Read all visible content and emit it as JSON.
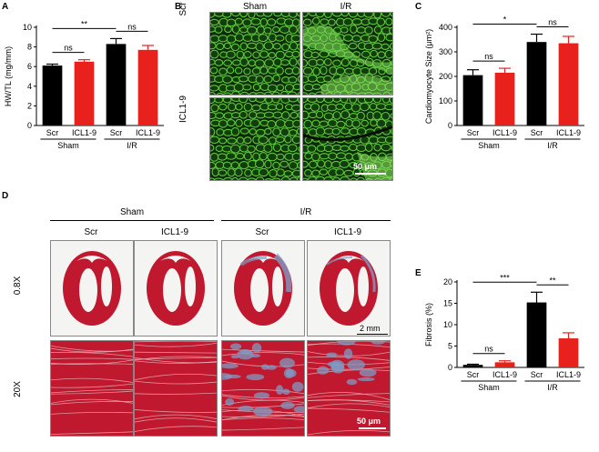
{
  "colors": {
    "scr": "#000000",
    "icl": "#e8211c",
    "myocyte_bg": "#0b2a06",
    "myocyte_edge": "#5fc83a",
    "masson_red": "#c0182e",
    "masson_blue": "#7f9bc4"
  },
  "panels": {
    "A": {
      "letter": "A"
    },
    "B": {
      "letter": "B",
      "col_sham": "Sham",
      "col_ir": "I/R",
      "row_scr": "Scr",
      "row_icl": "ICL1-9",
      "scale": "50 μm"
    },
    "C": {
      "letter": "C"
    },
    "D": {
      "letter": "D",
      "group_sham": "Sham",
      "group_ir": "I/R",
      "col_labels": [
        "Scr",
        "ICL1-9",
        "Scr",
        "ICL1-9"
      ],
      "row_low": "0.8X",
      "row_high": "20X",
      "scale_low": "2 mm",
      "scale_high": "50 μm"
    },
    "E": {
      "letter": "E"
    }
  },
  "chart_data": [
    {
      "id": "A",
      "type": "bar",
      "categories": [
        "Scr",
        "ICL1-9",
        "Scr",
        "ICL1-9"
      ],
      "groups": [
        "Sham",
        "I/R"
      ],
      "values": [
        6.1,
        6.5,
        8.3,
        7.7
      ],
      "errors": [
        0.15,
        0.2,
        0.55,
        0.45
      ],
      "ylabel": "HW/TL (mg/mm)",
      "ylim": [
        0,
        10
      ],
      "yticks": [
        0,
        2,
        4,
        6,
        8,
        10
      ],
      "annotations": [
        {
          "text": "ns",
          "from": 0,
          "to": 1
        },
        {
          "text": "ns",
          "from": 2,
          "to": 3
        },
        {
          "text": "**",
          "from": 0,
          "to": 2
        }
      ]
    },
    {
      "id": "C",
      "type": "bar",
      "categories": [
        "Scr",
        "ICL1-9",
        "Scr",
        "ICL1-9"
      ],
      "groups": [
        "Sham",
        "I/R"
      ],
      "values": [
        205,
        215,
        340,
        335
      ],
      "errors": [
        22,
        18,
        32,
        28
      ],
      "ylabel": "Cardiomyocyte Size (μm²)",
      "ylim": [
        0,
        400
      ],
      "yticks": [
        0,
        100,
        200,
        300,
        400
      ],
      "annotations": [
        {
          "text": "ns",
          "from": 0,
          "to": 1
        },
        {
          "text": "ns",
          "from": 2,
          "to": 3
        },
        {
          "text": "*",
          "from": 0,
          "to": 2
        }
      ]
    },
    {
      "id": "E",
      "type": "bar",
      "categories": [
        "Scr",
        "ICL1-9",
        "Scr",
        "ICL1-9"
      ],
      "groups": [
        "Sham",
        "I/R"
      ],
      "values": [
        0.6,
        1.2,
        15.2,
        6.8
      ],
      "errors": [
        0.15,
        0.35,
        2.4,
        1.3
      ],
      "ylabel": "Fibrosis (%)",
      "ylim": [
        0,
        20
      ],
      "yticks": [
        0,
        5,
        10,
        15,
        20
      ],
      "annotations": [
        {
          "text": "ns",
          "from": 0,
          "to": 1
        },
        {
          "text": "**",
          "from": 2,
          "to": 3
        },
        {
          "text": "***",
          "from": 0,
          "to": 2
        }
      ]
    }
  ]
}
